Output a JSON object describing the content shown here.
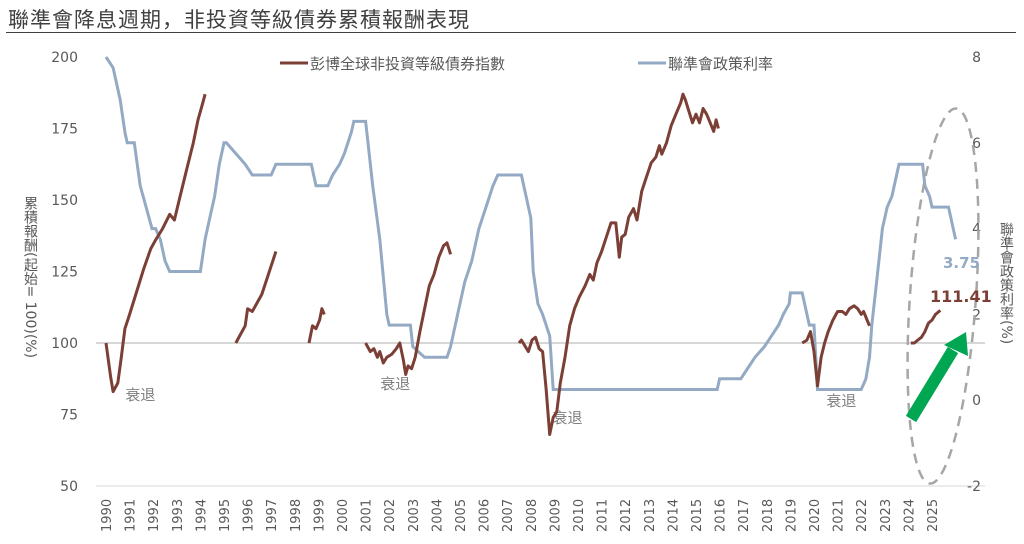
{
  "title": "聯準會降息週期，非投資等級債券累積報酬表現",
  "chart_data": {
    "type": "line",
    "title": "聯準會降息週期，非投資等級債券累積報酬表現",
    "xlabel": "",
    "ylabel": "累積報酬(起始= 100)(%)",
    "y2label": "聯準會政策利率(%)",
    "ylim": [
      50,
      200
    ],
    "y2lim": [
      -2,
      8
    ],
    "yticks": [
      50,
      75,
      100,
      125,
      150,
      175,
      200
    ],
    "y2ticks": [
      -2,
      0,
      2,
      4,
      6,
      8
    ],
    "xticks": [
      "1990",
      "1991",
      "1992",
      "1993",
      "1994",
      "1995",
      "1996",
      "1997",
      "1998",
      "1999",
      "2000",
      "2001",
      "2002",
      "2003",
      "2004",
      "2005",
      "2006",
      "2007",
      "2008",
      "2009",
      "2010",
      "2011",
      "2012",
      "2013",
      "2014",
      "2015",
      "2016",
      "2017",
      "2018",
      "2019",
      "2020",
      "2021",
      "2022",
      "2023",
      "2024",
      "2025"
    ],
    "grid": false,
    "reference_line": 100,
    "legend": [
      "彭博全球非投資等級債券指數",
      "聯準會政策利率"
    ],
    "legend_position": "top",
    "colors": {
      "bond": "#7b3f36",
      "rate": "#94aac4",
      "arrow": "#00a651",
      "ellipse": "#a6a6a6"
    },
    "series": [
      {
        "name": "彭博全球非投資等級債券指數",
        "axis": "left",
        "segments": [
          [
            [
              1990.0,
              100
            ],
            [
              1990.2,
              88
            ],
            [
              1990.3,
              83
            ],
            [
              1990.5,
              86
            ],
            [
              1990.65,
              95
            ],
            [
              1990.8,
              105
            ],
            [
              1991.0,
              110
            ],
            [
              1991.3,
              118
            ],
            [
              1991.6,
              126
            ],
            [
              1991.9,
              133
            ],
            [
              1992.1,
              136
            ],
            [
              1992.4,
              140
            ],
            [
              1992.7,
              145
            ],
            [
              1992.9,
              143
            ],
            [
              1993.1,
              150
            ],
            [
              1993.4,
              160
            ],
            [
              1993.7,
              170
            ],
            [
              1993.9,
              178
            ],
            [
              1994.1,
              184
            ],
            [
              1994.2,
              187
            ]
          ],
          [
            [
              1995.5,
              100
            ],
            [
              1995.7,
              103
            ],
            [
              1995.9,
              106
            ],
            [
              1996.0,
              112
            ],
            [
              1996.2,
              111
            ],
            [
              1996.4,
              114
            ],
            [
              1996.6,
              117
            ],
            [
              1996.8,
              122
            ],
            [
              1997.0,
              127
            ],
            [
              1997.2,
              132
            ]
          ],
          [
            [
              1998.6,
              100
            ],
            [
              1998.75,
              106
            ],
            [
              1998.9,
              105
            ],
            [
              1999.05,
              108
            ],
            [
              1999.15,
              112
            ],
            [
              1999.25,
              110
            ]
          ],
          [
            [
              2001.0,
              100
            ],
            [
              2001.2,
              97
            ],
            [
              2001.35,
              98
            ],
            [
              2001.5,
              95
            ],
            [
              2001.6,
              97
            ],
            [
              2001.75,
              93
            ],
            [
              2001.9,
              95
            ],
            [
              2002.1,
              96
            ],
            [
              2002.3,
              98
            ],
            [
              2002.45,
              100
            ],
            [
              2002.6,
              94
            ],
            [
              2002.7,
              89
            ],
            [
              2002.8,
              92
            ],
            [
              2002.95,
              91
            ],
            [
              2003.1,
              95
            ],
            [
              2003.3,
              104
            ],
            [
              2003.5,
              112
            ],
            [
              2003.7,
              120
            ],
            [
              2003.9,
              124
            ],
            [
              2004.1,
              130
            ],
            [
              2004.3,
              134
            ],
            [
              2004.45,
              135
            ],
            [
              2004.6,
              131
            ]
          ],
          [
            [
              2007.5,
              100
            ],
            [
              2007.6,
              101
            ],
            [
              2007.75,
              99
            ],
            [
              2007.9,
              97
            ],
            [
              2008.05,
              101
            ],
            [
              2008.2,
              102
            ],
            [
              2008.35,
              98
            ],
            [
              2008.5,
              97
            ],
            [
              2008.65,
              84
            ],
            [
              2008.8,
              68
            ],
            [
              2008.95,
              74
            ],
            [
              2009.1,
              76
            ],
            [
              2009.25,
              86
            ],
            [
              2009.45,
              95
            ],
            [
              2009.65,
              106
            ],
            [
              2009.85,
              112
            ],
            [
              2010.05,
              116
            ],
            [
              2010.3,
              120
            ],
            [
              2010.5,
              124
            ],
            [
              2010.65,
              122
            ],
            [
              2010.8,
              128
            ],
            [
              2011.0,
              132
            ],
            [
              2011.2,
              137
            ],
            [
              2011.4,
              142
            ],
            [
              2011.6,
              142
            ],
            [
              2011.75,
              130
            ],
            [
              2011.85,
              137
            ],
            [
              2012.0,
              138
            ],
            [
              2012.15,
              144
            ],
            [
              2012.35,
              147
            ],
            [
              2012.5,
              143
            ],
            [
              2012.7,
              153
            ],
            [
              2012.9,
              158
            ],
            [
              2013.1,
              163
            ],
            [
              2013.3,
              165
            ],
            [
              2013.45,
              169
            ],
            [
              2013.55,
              166
            ],
            [
              2013.75,
              170
            ],
            [
              2013.95,
              176
            ],
            [
              2014.15,
              180
            ],
            [
              2014.35,
              184
            ],
            [
              2014.45,
              187
            ],
            [
              2014.55,
              185
            ],
            [
              2014.7,
              181
            ],
            [
              2014.85,
              177
            ],
            [
              2015.0,
              180
            ],
            [
              2015.15,
              177
            ],
            [
              2015.3,
              182
            ],
            [
              2015.45,
              180
            ],
            [
              2015.6,
              177
            ],
            [
              2015.75,
              174
            ],
            [
              2015.85,
              178
            ],
            [
              2015.95,
              175
            ]
          ],
          [
            [
              2019.5,
              100
            ],
            [
              2019.7,
              101
            ],
            [
              2019.85,
              104
            ],
            [
              2020.0,
              97
            ],
            [
              2020.15,
              85
            ],
            [
              2020.3,
              95
            ],
            [
              2020.45,
              100
            ],
            [
              2020.6,
              104
            ],
            [
              2020.8,
              108
            ],
            [
              2021.0,
              111
            ],
            [
              2021.2,
              111
            ],
            [
              2021.35,
              110
            ],
            [
              2021.5,
              112
            ],
            [
              2021.7,
              113
            ],
            [
              2021.85,
              112
            ],
            [
              2022.0,
              110
            ],
            [
              2022.1,
              111
            ],
            [
              2022.25,
              108
            ],
            [
              2022.35,
              106
            ]
          ],
          [
            [
              2024.1,
              100
            ],
            [
              2024.25,
              100
            ],
            [
              2024.4,
              101
            ],
            [
              2024.55,
              102
            ],
            [
              2024.7,
              104
            ],
            [
              2024.85,
              107
            ],
            [
              2025.0,
              108
            ],
            [
              2025.15,
              110
            ],
            [
              2025.35,
              111.41
            ]
          ]
        ],
        "last_value": "111.41"
      },
      {
        "name": "聯準會政策利率",
        "axis": "right",
        "points": [
          [
            1990.0,
            8.0
          ],
          [
            1990.3,
            7.75
          ],
          [
            1990.6,
            7.0
          ],
          [
            1990.8,
            6.25
          ],
          [
            1990.9,
            6.0
          ],
          [
            1991.2,
            6.0
          ],
          [
            1991.45,
            5.0
          ],
          [
            1991.7,
            4.5
          ],
          [
            1991.95,
            4.0
          ],
          [
            1992.1,
            4.0
          ],
          [
            1992.3,
            3.75
          ],
          [
            1992.5,
            3.25
          ],
          [
            1992.7,
            3.0
          ],
          [
            1993.0,
            3.0
          ],
          [
            1994.0,
            3.0
          ],
          [
            1994.2,
            3.75
          ],
          [
            1994.4,
            4.25
          ],
          [
            1994.6,
            4.75
          ],
          [
            1994.8,
            5.5
          ],
          [
            1995.0,
            6.0
          ],
          [
            1995.1,
            6.0
          ],
          [
            1995.5,
            5.75
          ],
          [
            1995.9,
            5.5
          ],
          [
            1996.2,
            5.25
          ],
          [
            1997.0,
            5.25
          ],
          [
            1997.2,
            5.5
          ],
          [
            1998.7,
            5.5
          ],
          [
            1998.9,
            5.0
          ],
          [
            1999.4,
            5.0
          ],
          [
            1999.6,
            5.25
          ],
          [
            1999.9,
            5.5
          ],
          [
            2000.1,
            5.75
          ],
          [
            2000.4,
            6.25
          ],
          [
            2000.5,
            6.5
          ],
          [
            2001.0,
            6.5
          ],
          [
            2001.1,
            6.0
          ],
          [
            2001.3,
            5.0
          ],
          [
            2001.6,
            3.75
          ],
          [
            2001.9,
            2.0
          ],
          [
            2002.0,
            1.75
          ],
          [
            2002.9,
            1.75
          ],
          [
            2003.0,
            1.25
          ],
          [
            2003.5,
            1.0
          ],
          [
            2004.45,
            1.0
          ],
          [
            2004.6,
            1.25
          ],
          [
            2004.9,
            2.0
          ],
          [
            2005.2,
            2.75
          ],
          [
            2005.5,
            3.25
          ],
          [
            2005.8,
            4.0
          ],
          [
            2006.1,
            4.5
          ],
          [
            2006.4,
            5.0
          ],
          [
            2006.6,
            5.25
          ],
          [
            2007.6,
            5.25
          ],
          [
            2007.8,
            4.75
          ],
          [
            2008.0,
            4.25
          ],
          [
            2008.1,
            3.0
          ],
          [
            2008.3,
            2.25
          ],
          [
            2008.5,
            2.0
          ],
          [
            2008.8,
            1.5
          ],
          [
            2008.95,
            0.25
          ],
          [
            2009.0,
            0.25
          ],
          [
            2015.9,
            0.25
          ],
          [
            2016.0,
            0.5
          ],
          [
            2016.9,
            0.5
          ],
          [
            2017.2,
            0.75
          ],
          [
            2017.5,
            1.0
          ],
          [
            2017.9,
            1.25
          ],
          [
            2018.2,
            1.5
          ],
          [
            2018.5,
            1.75
          ],
          [
            2018.7,
            2.0
          ],
          [
            2018.95,
            2.25
          ],
          [
            2019.0,
            2.5
          ],
          [
            2019.5,
            2.5
          ],
          [
            2019.6,
            2.25
          ],
          [
            2019.8,
            1.75
          ],
          [
            2020.0,
            1.75
          ],
          [
            2020.15,
            0.25
          ],
          [
            2022.0,
            0.25
          ],
          [
            2022.2,
            0.5
          ],
          [
            2022.35,
            1.0
          ],
          [
            2022.45,
            1.75
          ],
          [
            2022.6,
            2.5
          ],
          [
            2022.75,
            3.25
          ],
          [
            2022.9,
            4.0
          ],
          [
            2023.1,
            4.5
          ],
          [
            2023.3,
            4.75
          ],
          [
            2023.5,
            5.25
          ],
          [
            2023.6,
            5.5
          ],
          [
            2024.6,
            5.5
          ],
          [
            2024.7,
            5.0
          ],
          [
            2024.9,
            4.75
          ],
          [
            2025.0,
            4.5
          ],
          [
            2025.7,
            4.5
          ],
          [
            2025.8,
            4.25
          ],
          [
            2025.9,
            4.0
          ],
          [
            2026.0,
            3.75
          ]
        ],
        "last_value": "3.75"
      }
    ],
    "annotations": [
      {
        "text": "衰退",
        "x": 1991.5,
        "y": 80
      },
      {
        "text": "衰退",
        "x": 2002.3,
        "y": 84
      },
      {
        "text": "衰退",
        "x": 2009.6,
        "y": 72
      },
      {
        "text": "衰退",
        "x": 2021.2,
        "y": 78
      }
    ]
  },
  "axes": {
    "left_title": "累積報酬(起始= 100)(%)",
    "right_title": "聯準會政策利率(%)"
  },
  "labels": {
    "rate_end": "3.75",
    "bond_end": "111.41"
  },
  "legend": {
    "bond": "彭博全球非投資等級債券指數",
    "rate": "聯準會政策利率"
  },
  "recession_label": "衰退"
}
